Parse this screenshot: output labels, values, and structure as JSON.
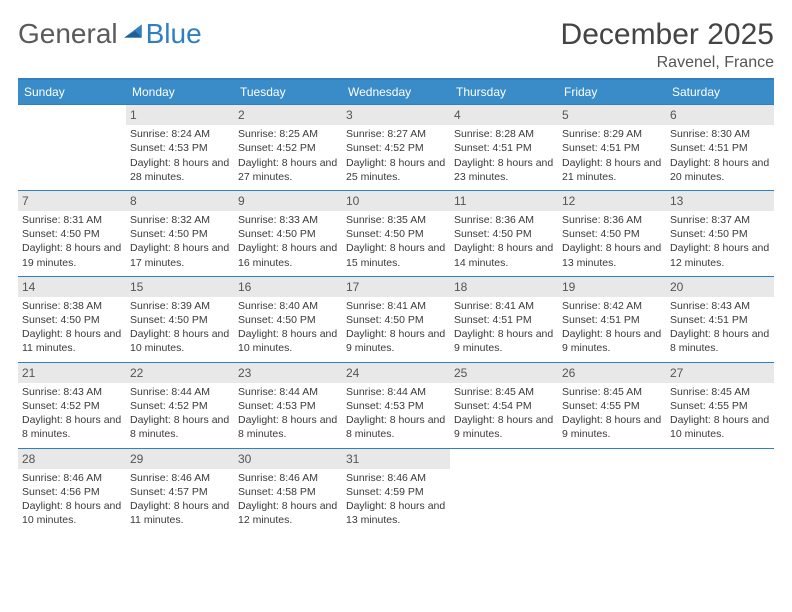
{
  "brand": {
    "part1": "General",
    "part2": "Blue"
  },
  "title": "December 2025",
  "location": "Ravenel, France",
  "days_of_week": [
    "Sunday",
    "Monday",
    "Tuesday",
    "Wednesday",
    "Thursday",
    "Friday",
    "Saturday"
  ],
  "header_bg": "#3a8cc9",
  "accent": "#2f7fc1",
  "cells": [
    {
      "n": "",
      "sr": "",
      "ss": "",
      "dl": ""
    },
    {
      "n": "1",
      "sr": "Sunrise: 8:24 AM",
      "ss": "Sunset: 4:53 PM",
      "dl": "Daylight: 8 hours and 28 minutes."
    },
    {
      "n": "2",
      "sr": "Sunrise: 8:25 AM",
      "ss": "Sunset: 4:52 PM",
      "dl": "Daylight: 8 hours and 27 minutes."
    },
    {
      "n": "3",
      "sr": "Sunrise: 8:27 AM",
      "ss": "Sunset: 4:52 PM",
      "dl": "Daylight: 8 hours and 25 minutes."
    },
    {
      "n": "4",
      "sr": "Sunrise: 8:28 AM",
      "ss": "Sunset: 4:51 PM",
      "dl": "Daylight: 8 hours and 23 minutes."
    },
    {
      "n": "5",
      "sr": "Sunrise: 8:29 AM",
      "ss": "Sunset: 4:51 PM",
      "dl": "Daylight: 8 hours and 21 minutes."
    },
    {
      "n": "6",
      "sr": "Sunrise: 8:30 AM",
      "ss": "Sunset: 4:51 PM",
      "dl": "Daylight: 8 hours and 20 minutes."
    },
    {
      "n": "7",
      "sr": "Sunrise: 8:31 AM",
      "ss": "Sunset: 4:50 PM",
      "dl": "Daylight: 8 hours and 19 minutes."
    },
    {
      "n": "8",
      "sr": "Sunrise: 8:32 AM",
      "ss": "Sunset: 4:50 PM",
      "dl": "Daylight: 8 hours and 17 minutes."
    },
    {
      "n": "9",
      "sr": "Sunrise: 8:33 AM",
      "ss": "Sunset: 4:50 PM",
      "dl": "Daylight: 8 hours and 16 minutes."
    },
    {
      "n": "10",
      "sr": "Sunrise: 8:35 AM",
      "ss": "Sunset: 4:50 PM",
      "dl": "Daylight: 8 hours and 15 minutes."
    },
    {
      "n": "11",
      "sr": "Sunrise: 8:36 AM",
      "ss": "Sunset: 4:50 PM",
      "dl": "Daylight: 8 hours and 14 minutes."
    },
    {
      "n": "12",
      "sr": "Sunrise: 8:36 AM",
      "ss": "Sunset: 4:50 PM",
      "dl": "Daylight: 8 hours and 13 minutes."
    },
    {
      "n": "13",
      "sr": "Sunrise: 8:37 AM",
      "ss": "Sunset: 4:50 PM",
      "dl": "Daylight: 8 hours and 12 minutes."
    },
    {
      "n": "14",
      "sr": "Sunrise: 8:38 AM",
      "ss": "Sunset: 4:50 PM",
      "dl": "Daylight: 8 hours and 11 minutes."
    },
    {
      "n": "15",
      "sr": "Sunrise: 8:39 AM",
      "ss": "Sunset: 4:50 PM",
      "dl": "Daylight: 8 hours and 10 minutes."
    },
    {
      "n": "16",
      "sr": "Sunrise: 8:40 AM",
      "ss": "Sunset: 4:50 PM",
      "dl": "Daylight: 8 hours and 10 minutes."
    },
    {
      "n": "17",
      "sr": "Sunrise: 8:41 AM",
      "ss": "Sunset: 4:50 PM",
      "dl": "Daylight: 8 hours and 9 minutes."
    },
    {
      "n": "18",
      "sr": "Sunrise: 8:41 AM",
      "ss": "Sunset: 4:51 PM",
      "dl": "Daylight: 8 hours and 9 minutes."
    },
    {
      "n": "19",
      "sr": "Sunrise: 8:42 AM",
      "ss": "Sunset: 4:51 PM",
      "dl": "Daylight: 8 hours and 9 minutes."
    },
    {
      "n": "20",
      "sr": "Sunrise: 8:43 AM",
      "ss": "Sunset: 4:51 PM",
      "dl": "Daylight: 8 hours and 8 minutes."
    },
    {
      "n": "21",
      "sr": "Sunrise: 8:43 AM",
      "ss": "Sunset: 4:52 PM",
      "dl": "Daylight: 8 hours and 8 minutes."
    },
    {
      "n": "22",
      "sr": "Sunrise: 8:44 AM",
      "ss": "Sunset: 4:52 PM",
      "dl": "Daylight: 8 hours and 8 minutes."
    },
    {
      "n": "23",
      "sr": "Sunrise: 8:44 AM",
      "ss": "Sunset: 4:53 PM",
      "dl": "Daylight: 8 hours and 8 minutes."
    },
    {
      "n": "24",
      "sr": "Sunrise: 8:44 AM",
      "ss": "Sunset: 4:53 PM",
      "dl": "Daylight: 8 hours and 8 minutes."
    },
    {
      "n": "25",
      "sr": "Sunrise: 8:45 AM",
      "ss": "Sunset: 4:54 PM",
      "dl": "Daylight: 8 hours and 9 minutes."
    },
    {
      "n": "26",
      "sr": "Sunrise: 8:45 AM",
      "ss": "Sunset: 4:55 PM",
      "dl": "Daylight: 8 hours and 9 minutes."
    },
    {
      "n": "27",
      "sr": "Sunrise: 8:45 AM",
      "ss": "Sunset: 4:55 PM",
      "dl": "Daylight: 8 hours and 10 minutes."
    },
    {
      "n": "28",
      "sr": "Sunrise: 8:46 AM",
      "ss": "Sunset: 4:56 PM",
      "dl": "Daylight: 8 hours and 10 minutes."
    },
    {
      "n": "29",
      "sr": "Sunrise: 8:46 AM",
      "ss": "Sunset: 4:57 PM",
      "dl": "Daylight: 8 hours and 11 minutes."
    },
    {
      "n": "30",
      "sr": "Sunrise: 8:46 AM",
      "ss": "Sunset: 4:58 PM",
      "dl": "Daylight: 8 hours and 12 minutes."
    },
    {
      "n": "31",
      "sr": "Sunrise: 8:46 AM",
      "ss": "Sunset: 4:59 PM",
      "dl": "Daylight: 8 hours and 13 minutes."
    },
    {
      "n": "",
      "sr": "",
      "ss": "",
      "dl": ""
    },
    {
      "n": "",
      "sr": "",
      "ss": "",
      "dl": ""
    },
    {
      "n": "",
      "sr": "",
      "ss": "",
      "dl": ""
    }
  ]
}
